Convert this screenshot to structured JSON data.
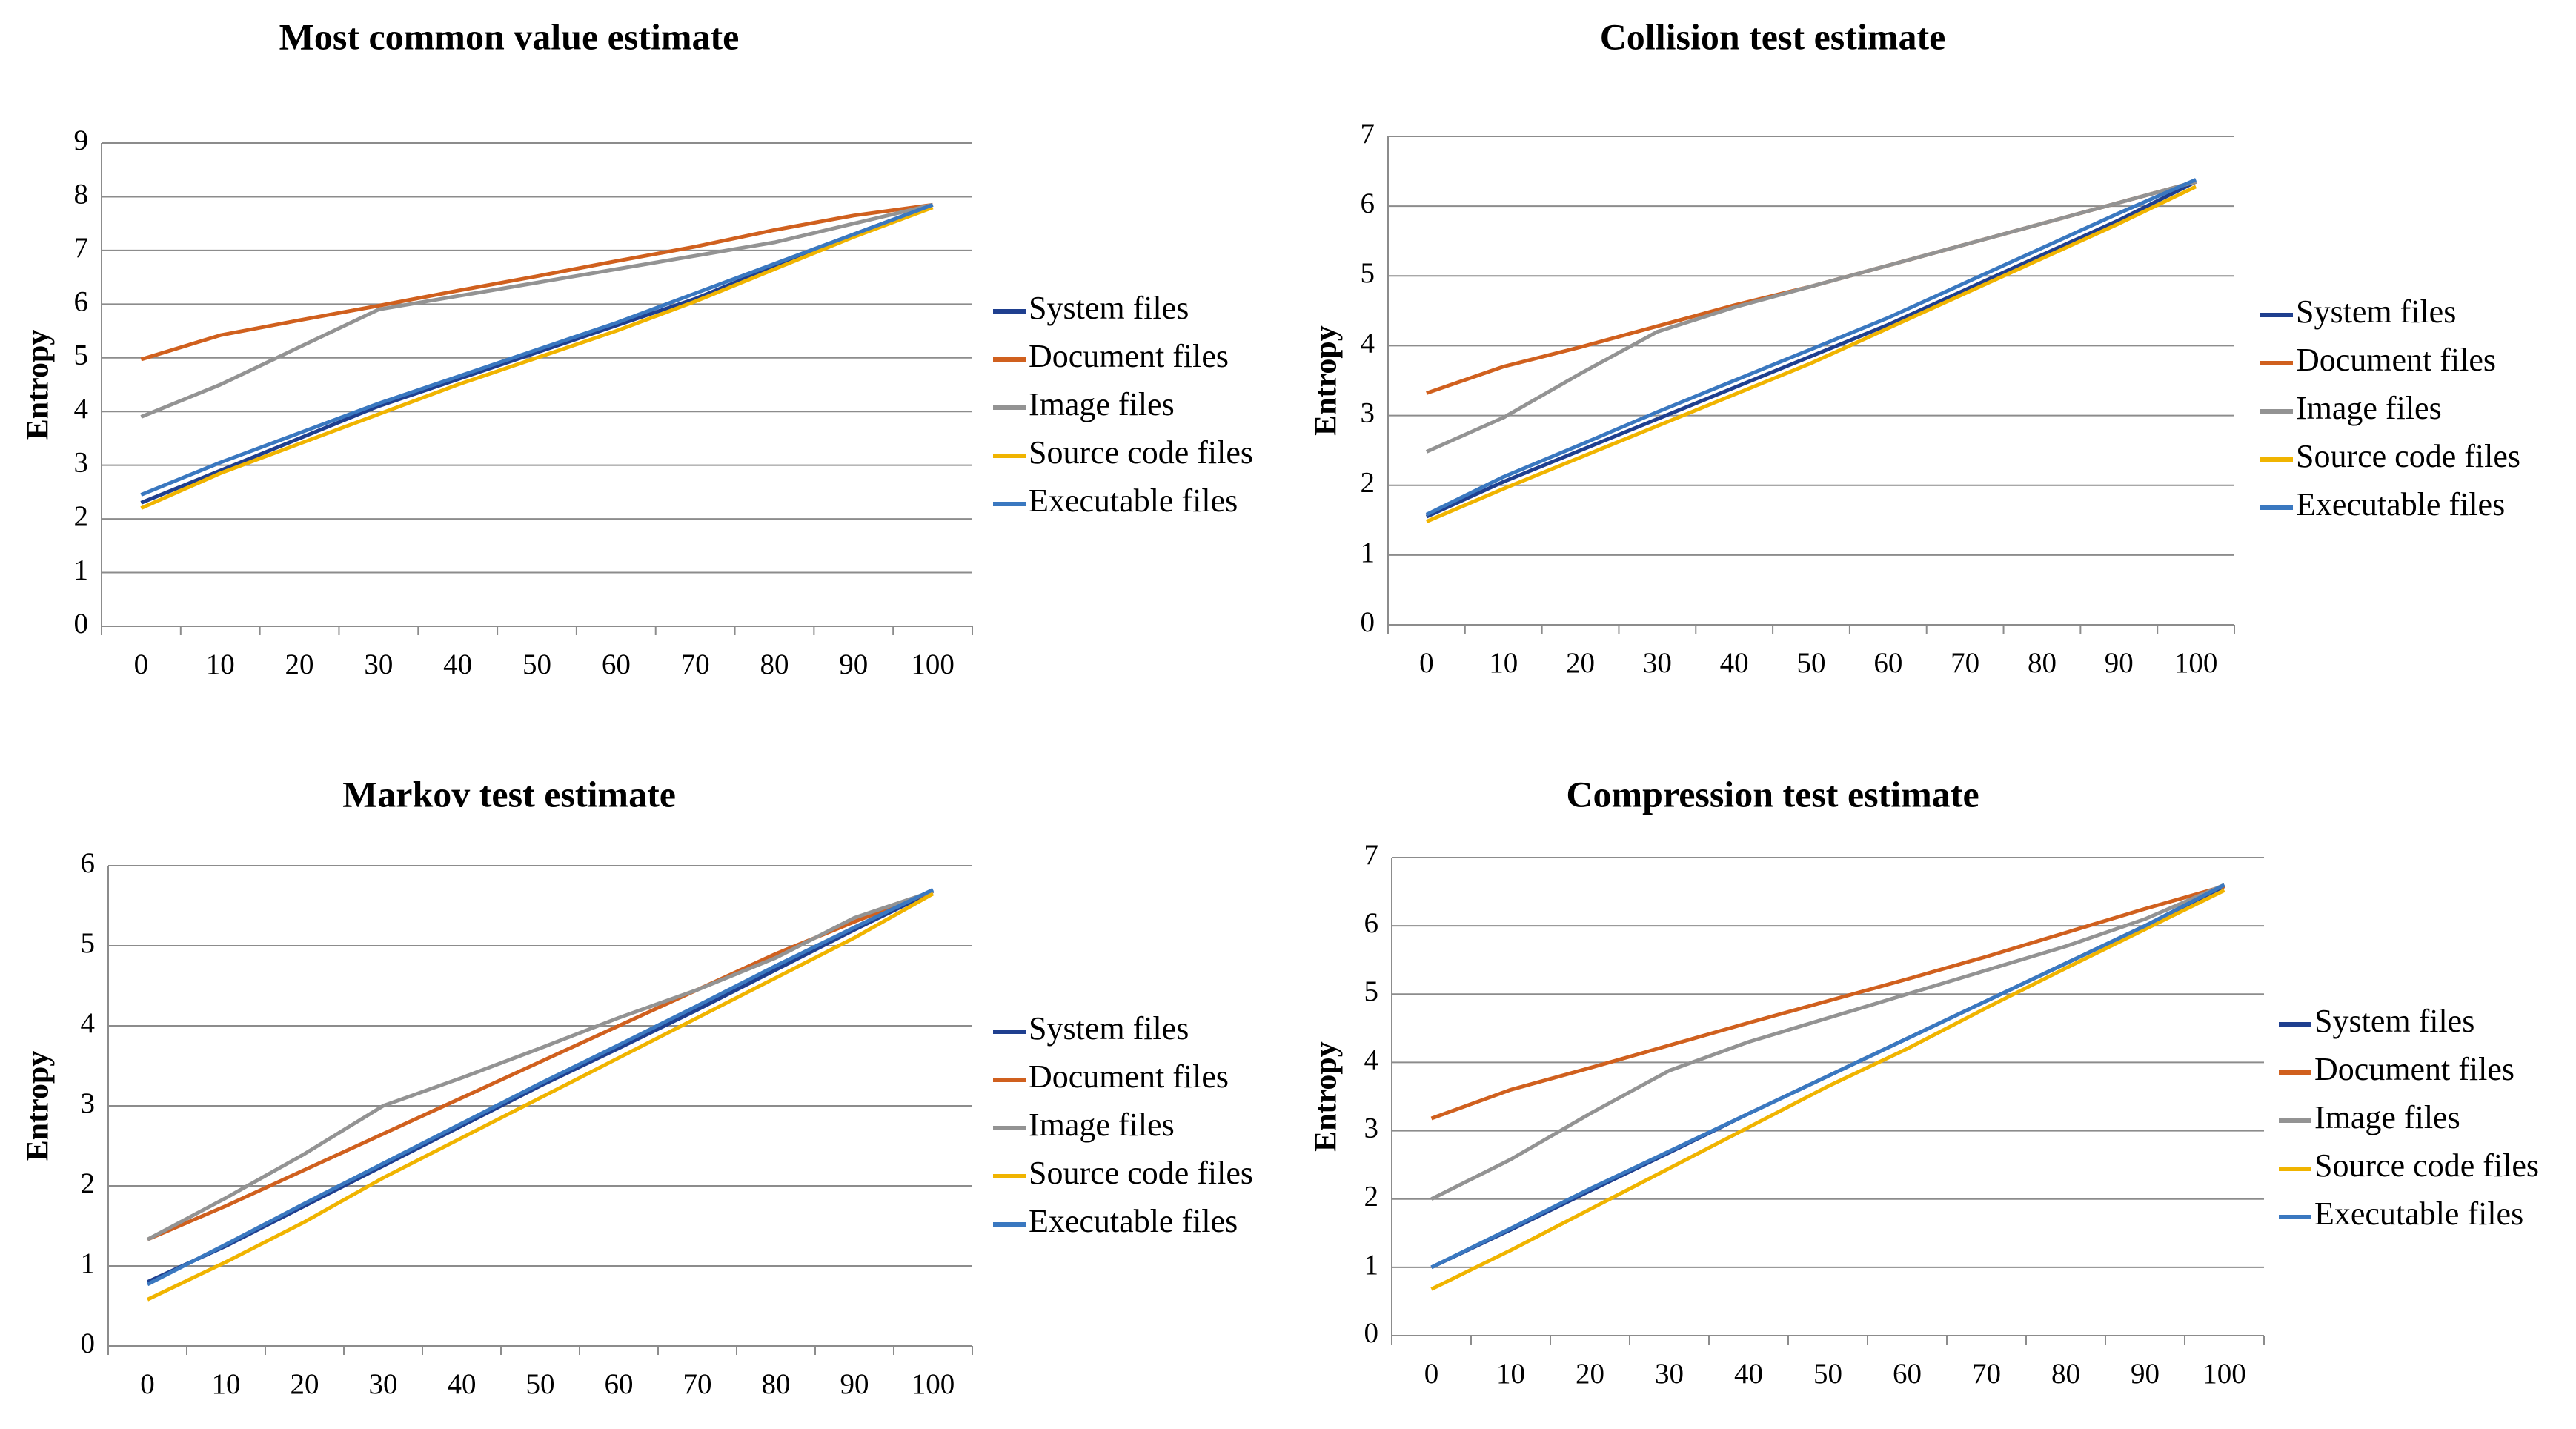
{
  "chart_data": [
    {
      "type": "line",
      "title": "Most common value estimate",
      "y_label": "Entropy",
      "categories": [
        0,
        10,
        20,
        30,
        40,
        50,
        60,
        70,
        80,
        90,
        100
      ],
      "ylim": [
        0,
        9
      ],
      "yticks": [
        0,
        1,
        2,
        3,
        4,
        5,
        6,
        7,
        8,
        9
      ],
      "grid": true,
      "legend": "right",
      "series": [
        {
          "name": "System files",
          "color": "#1f3f8f",
          "values": [
            2.3,
            2.9,
            3.5,
            4.1,
            4.6,
            5.1,
            5.6,
            6.1,
            6.7,
            7.3,
            7.85
          ]
        },
        {
          "name": "Document files",
          "color": "#d0601e",
          "values": [
            4.97,
            5.42,
            5.7,
            5.97,
            6.25,
            6.52,
            6.8,
            7.07,
            7.38,
            7.65,
            7.85
          ]
        },
        {
          "name": "Image files",
          "color": "#939393",
          "values": [
            3.9,
            4.5,
            5.2,
            5.9,
            6.15,
            6.4,
            6.65,
            6.9,
            7.15,
            7.5,
            7.85
          ]
        },
        {
          "name": "Source code files",
          "color": "#f0b400",
          "values": [
            2.2,
            2.85,
            3.4,
            3.95,
            4.5,
            5.0,
            5.5,
            6.05,
            6.65,
            7.25,
            7.8
          ]
        },
        {
          "name": "Executable files",
          "color": "#3a78c0",
          "values": [
            2.45,
            3.05,
            3.6,
            4.15,
            4.65,
            5.15,
            5.65,
            6.2,
            6.75,
            7.3,
            7.85
          ]
        }
      ]
    },
    {
      "type": "line",
      "title": "Collision test estimate",
      "y_label": "Entropy",
      "categories": [
        0,
        10,
        20,
        30,
        40,
        50,
        60,
        70,
        80,
        90,
        100
      ],
      "ylim": [
        0,
        7
      ],
      "yticks": [
        0,
        1,
        2,
        3,
        4,
        5,
        6,
        7
      ],
      "grid": true,
      "legend": "right",
      "series": [
        {
          "name": "System files",
          "color": "#1f3f8f",
          "values": [
            1.55,
            2.05,
            2.5,
            2.95,
            3.4,
            3.85,
            4.3,
            4.8,
            5.3,
            5.8,
            6.35
          ]
        },
        {
          "name": "Document files",
          "color": "#d0601e",
          "values": [
            3.32,
            3.7,
            3.98,
            4.28,
            4.58,
            4.85,
            5.15,
            5.45,
            5.75,
            6.05,
            6.35
          ]
        },
        {
          "name": "Image files",
          "color": "#939393",
          "values": [
            2.48,
            2.97,
            3.6,
            4.2,
            4.55,
            4.85,
            5.15,
            5.45,
            5.75,
            6.05,
            6.35
          ]
        },
        {
          "name": "Source code files",
          "color": "#f0b400",
          "values": [
            1.48,
            1.95,
            2.4,
            2.85,
            3.3,
            3.75,
            4.25,
            4.75,
            5.25,
            5.75,
            6.28
          ]
        },
        {
          "name": "Executable files",
          "color": "#3a78c0",
          "values": [
            1.58,
            2.12,
            2.58,
            3.05,
            3.5,
            3.95,
            4.4,
            4.9,
            5.4,
            5.9,
            6.38
          ]
        }
      ]
    },
    {
      "type": "line",
      "title": "Markov test estimate",
      "y_label": "Entropy",
      "categories": [
        0,
        10,
        20,
        30,
        40,
        50,
        60,
        70,
        80,
        90,
        100
      ],
      "ylim": [
        0,
        6
      ],
      "yticks": [
        0,
        1,
        2,
        3,
        4,
        5,
        6
      ],
      "grid": true,
      "legend": "right",
      "series": [
        {
          "name": "System files",
          "color": "#1f3f8f",
          "values": [
            0.8,
            1.25,
            1.75,
            2.25,
            2.75,
            3.25,
            3.72,
            4.2,
            4.7,
            5.2,
            5.68
          ]
        },
        {
          "name": "Document files",
          "color": "#d0601e",
          "values": [
            1.33,
            1.75,
            2.2,
            2.65,
            3.1,
            3.55,
            4.0,
            4.45,
            4.9,
            5.3,
            5.68
          ]
        },
        {
          "name": "Image files",
          "color": "#939393",
          "values": [
            1.33,
            1.85,
            2.4,
            3.0,
            3.35,
            3.72,
            4.1,
            4.45,
            4.85,
            5.35,
            5.68
          ]
        },
        {
          "name": "Source code files",
          "color": "#f0b400",
          "values": [
            0.58,
            1.05,
            1.55,
            2.1,
            2.6,
            3.1,
            3.6,
            4.1,
            4.6,
            5.1,
            5.65
          ]
        },
        {
          "name": "Executable files",
          "color": "#3a78c0",
          "values": [
            0.77,
            1.27,
            1.78,
            2.28,
            2.78,
            3.28,
            3.76,
            4.25,
            4.75,
            5.23,
            5.7
          ]
        }
      ]
    },
    {
      "type": "line",
      "title": "Compression test estimate",
      "y_label": "Entropy",
      "categories": [
        0,
        10,
        20,
        30,
        40,
        50,
        60,
        70,
        80,
        90,
        100
      ],
      "ylim": [
        0,
        7
      ],
      "yticks": [
        0,
        1,
        2,
        3,
        4,
        5,
        6,
        7
      ],
      "grid": true,
      "legend": "right",
      "series": [
        {
          "name": "System files",
          "color": "#1f3f8f",
          "values": [
            1.0,
            1.55,
            2.12,
            2.68,
            3.25,
            3.8,
            4.35,
            4.9,
            5.45,
            6.0,
            6.58
          ]
        },
        {
          "name": "Document files",
          "color": "#d0601e",
          "values": [
            3.18,
            3.6,
            3.92,
            4.25,
            4.58,
            4.9,
            5.22,
            5.55,
            5.9,
            6.25,
            6.58
          ]
        },
        {
          "name": "Image files",
          "color": "#939393",
          "values": [
            2.0,
            2.58,
            3.25,
            3.88,
            4.3,
            4.65,
            5.0,
            5.35,
            5.7,
            6.1,
            6.6
          ]
        },
        {
          "name": "Source code files",
          "color": "#f0b400",
          "values": [
            0.68,
            1.25,
            1.85,
            2.45,
            3.05,
            3.65,
            4.2,
            4.8,
            5.38,
            5.95,
            6.52
          ]
        },
        {
          "name": "Executable files",
          "color": "#3a78c0",
          "values": [
            1.0,
            1.57,
            2.15,
            2.7,
            3.25,
            3.8,
            4.35,
            4.9,
            5.45,
            6.0,
            6.6
          ]
        }
      ]
    }
  ]
}
